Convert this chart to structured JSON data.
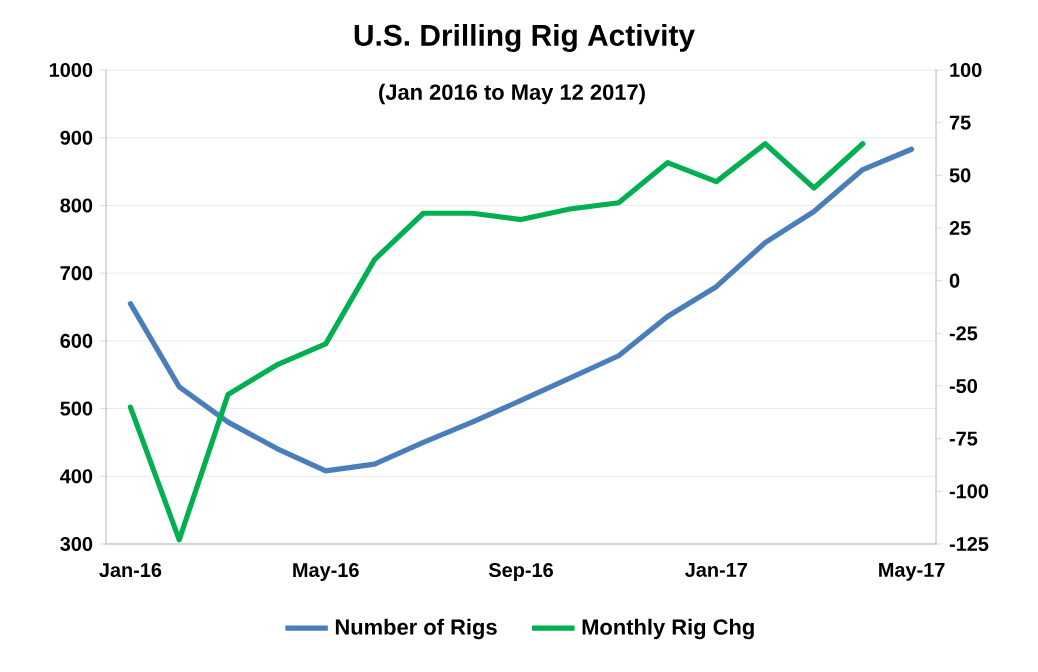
{
  "chart_data": {
    "type": "line",
    "title": "U.S. Drilling Rig Activity",
    "subtitle": "(Jan 2016 to May 12 2017)",
    "categories": [
      "Jan-16",
      null,
      null,
      null,
      "May-16",
      null,
      null,
      null,
      "Sep-16",
      null,
      null,
      null,
      "Jan-17",
      null,
      null,
      null,
      "May-17"
    ],
    "series": [
      {
        "name": "Number of Rigs",
        "color": "#4a7ebb",
        "values": [
          655,
          532,
          480,
          441,
          408,
          418,
          450,
          480,
          512,
          545,
          578,
          636,
          680,
          745,
          791,
          853,
          883
        ]
      },
      {
        "name": "Monthly Rig Chg",
        "color": "#00b050",
        "axis": "y2",
        "values": [
          -60,
          -123,
          -54,
          -40,
          -30,
          10,
          32,
          32,
          29,
          34,
          37,
          56,
          47,
          65,
          44,
          65,
          null
        ]
      }
    ],
    "ylim": [
      300,
      1000
    ],
    "yticks": [
      300,
      400,
      500,
      600,
      700,
      800,
      900,
      1000
    ],
    "y2lim": [
      -125,
      100
    ],
    "y2ticks": [
      -125,
      -100,
      -75,
      -50,
      -25,
      0,
      25,
      50,
      75,
      100
    ],
    "grid": "y",
    "legend": "bottom",
    "marker": "none",
    "line_style": "solid"
  }
}
